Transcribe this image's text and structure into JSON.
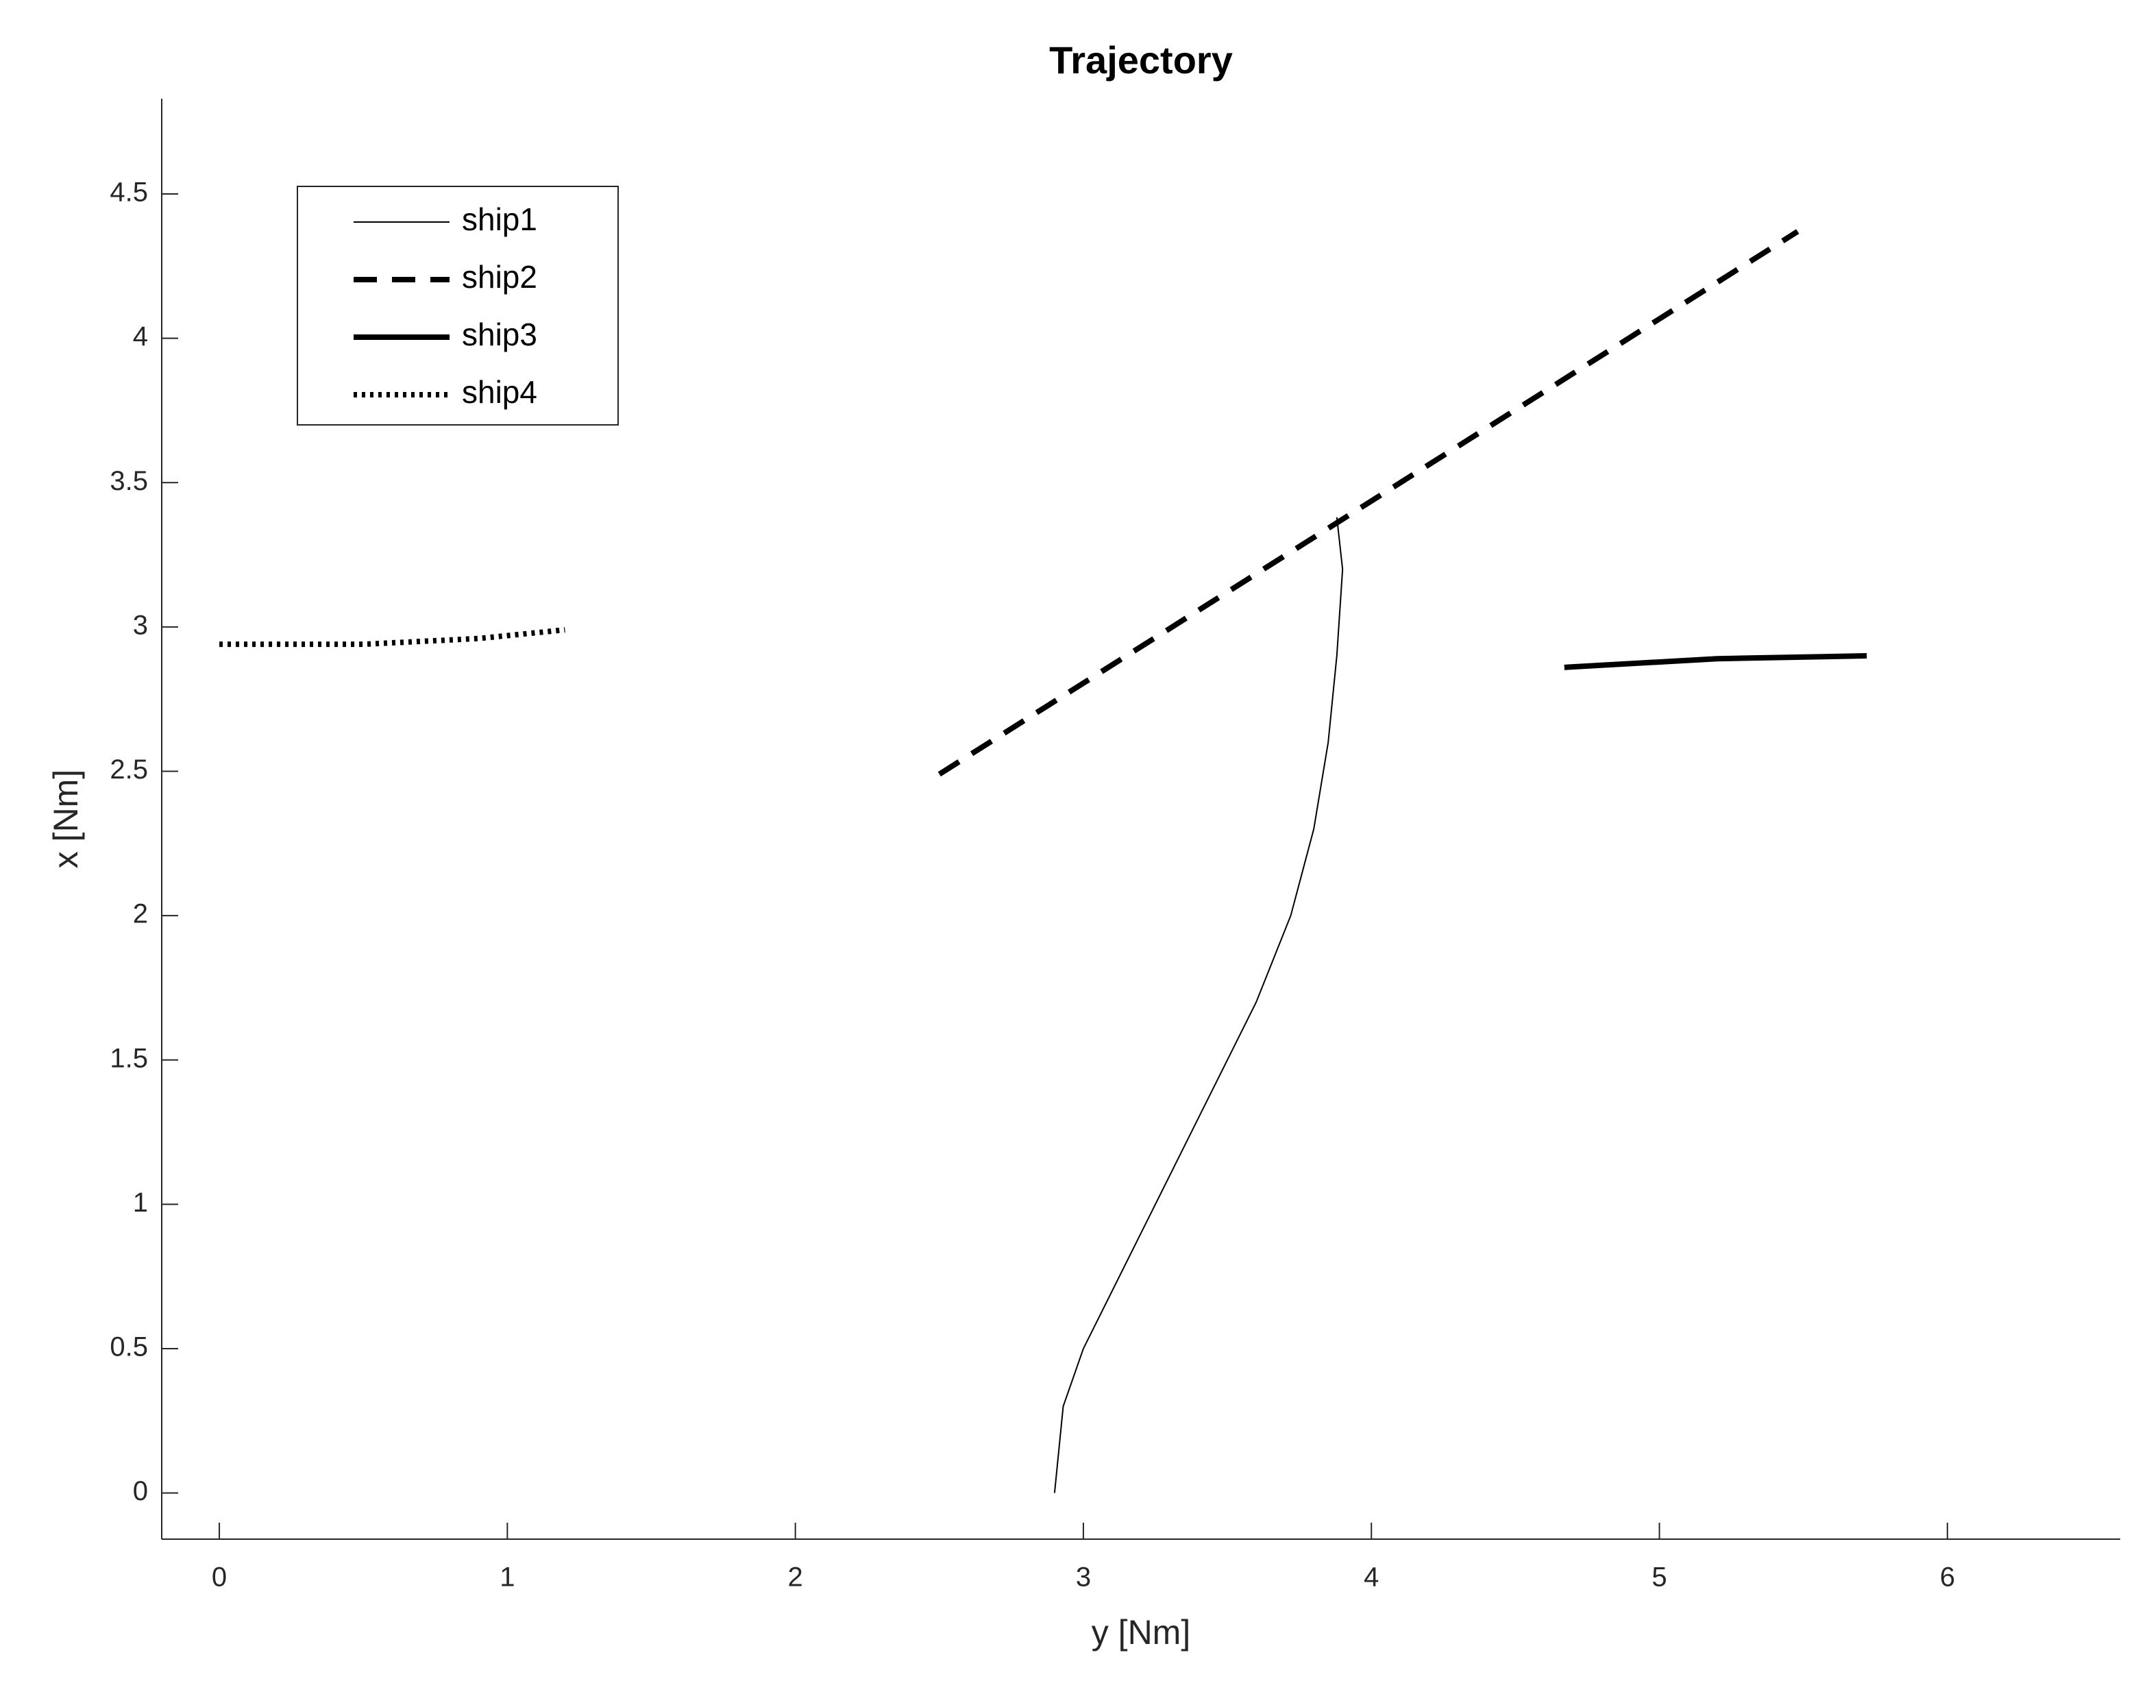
{
  "chart_data": {
    "type": "line",
    "title": "Trajectory",
    "x_label": "y [Nm]",
    "y_label": "x [Nm]",
    "xlim": [
      -0.2,
      6.6
    ],
    "ylim": [
      -0.16,
      4.83
    ],
    "xticks": [
      0,
      1,
      2,
      3,
      4,
      5,
      6
    ],
    "yticks": [
      0,
      0.5,
      1,
      1.5,
      2,
      2.5,
      3,
      3.5,
      4,
      4.5
    ],
    "legend": "northwest",
    "grid": false,
    "series": [
      {
        "name": "ship1",
        "color": "#000000",
        "style": "thin",
        "x": [
          2.9,
          2.93,
          3.0,
          3.2,
          3.4,
          3.6,
          3.72,
          3.8,
          3.85,
          3.88,
          3.9,
          3.88
        ],
        "values": [
          0,
          0.3,
          0.5,
          0.9,
          1.3,
          1.7,
          2.0,
          2.3,
          2.6,
          2.9,
          3.2,
          3.38
        ]
      },
      {
        "name": "ship2",
        "color": "#000000",
        "style": "dashed",
        "x": [
          2.5,
          5.48
        ],
        "values": [
          2.49,
          4.37
        ]
      },
      {
        "name": "ship3",
        "color": "#000000",
        "style": "thick",
        "x": [
          4.67,
          5.2,
          5.72
        ],
        "values": [
          2.86,
          2.89,
          2.9
        ]
      },
      {
        "name": "ship4",
        "color": "#000000",
        "style": "dotted",
        "x": [
          0,
          0.5,
          0.9,
          1.2
        ],
        "values": [
          2.94,
          2.94,
          2.96,
          2.99
        ]
      }
    ]
  }
}
